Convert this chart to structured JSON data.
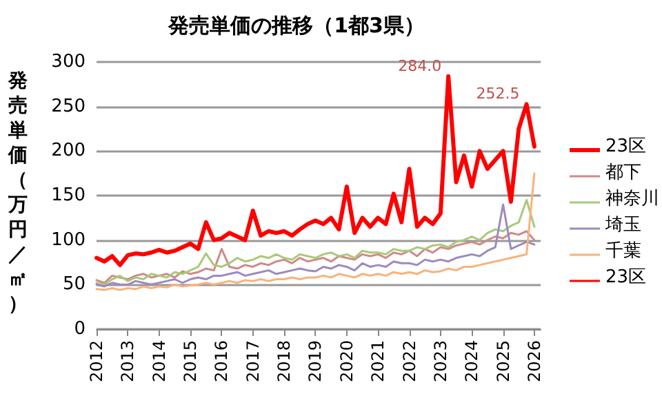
{
  "chart_data": {
    "type": "line",
    "title": "発売単価の推移（1都3県）",
    "ylabel": "発売単価（万円／㎡）",
    "x": [
      2012,
      2012.25,
      2012.5,
      2012.75,
      2013,
      2013.25,
      2013.5,
      2013.75,
      2014,
      2014.25,
      2014.5,
      2014.75,
      2015,
      2015.25,
      2015.5,
      2015.75,
      2016,
      2016.25,
      2016.5,
      2016.75,
      2017,
      2017.25,
      2017.5,
      2017.75,
      2018,
      2018.25,
      2018.5,
      2018.75,
      2019,
      2019.25,
      2019.5,
      2019.75,
      2020,
      2020.25,
      2020.5,
      2020.75,
      2021,
      2021.25,
      2021.5,
      2021.75,
      2022,
      2022.25,
      2022.5,
      2022.75,
      2023,
      2023.25,
      2023.5,
      2023.75,
      2024,
      2024.25,
      2024.5,
      2024.75,
      2025,
      2025.25,
      2025.5,
      2025.75,
      2026
    ],
    "series": [
      {
        "name": "23区",
        "color": "#ff0000",
        "values": [
          80,
          76,
          82,
          72,
          83,
          85,
          84,
          86,
          89,
          86,
          88,
          92,
          96,
          90,
          120,
          100,
          102,
          108,
          104,
          100,
          133,
          105,
          110,
          108,
          110,
          105,
          112,
          118,
          122,
          118,
          125,
          112,
          160,
          108,
          125,
          115,
          125,
          118,
          152,
          120,
          180,
          115,
          125,
          118,
          130,
          284,
          165,
          195,
          160,
          200,
          180,
          190,
          200,
          143,
          225,
          252.5,
          205
        ]
      },
      {
        "name": "都下",
        "color": "#d08a88",
        "values": [
          55,
          52,
          60,
          58,
          56,
          60,
          62,
          58,
          60,
          62,
          58,
          65,
          62,
          64,
          68,
          66,
          90,
          70,
          68,
          72,
          70,
          74,
          72,
          76,
          78,
          74,
          80,
          76,
          78,
          80,
          76,
          82,
          80,
          78,
          84,
          82,
          84,
          80,
          86,
          84,
          88,
          82,
          90,
          86,
          92,
          90,
          94,
          96,
          98,
          95,
          100,
          104,
          102,
          108,
          106,
          110,
          100
        ]
      },
      {
        "name": "神奈川",
        "color": "#a9c97a",
        "values": [
          52,
          50,
          56,
          60,
          54,
          58,
          56,
          62,
          60,
          58,
          64,
          62,
          66,
          70,
          85,
          72,
          70,
          74,
          80,
          76,
          78,
          82,
          80,
          84,
          80,
          78,
          84,
          82,
          80,
          84,
          86,
          82,
          84,
          80,
          88,
          86,
          86,
          84,
          90,
          88,
          88,
          92,
          90,
          94,
          95,
          92,
          98,
          100,
          104,
          100,
          108,
          112,
          110,
          116,
          120,
          145,
          115
        ]
      },
      {
        "name": "埼玉",
        "color": "#9c8ac0",
        "values": [
          50,
          48,
          52,
          50,
          50,
          54,
          52,
          50,
          52,
          54,
          56,
          52,
          56,
          58,
          56,
          60,
          60,
          62,
          64,
          60,
          62,
          64,
          66,
          62,
          64,
          66,
          68,
          66,
          65,
          70,
          68,
          72,
          70,
          66,
          74,
          70,
          72,
          70,
          76,
          74,
          74,
          72,
          78,
          76,
          78,
          76,
          80,
          82,
          84,
          82,
          88,
          92,
          140,
          90,
          94,
          98,
          95
        ]
      },
      {
        "name": "千葉",
        "color": "#f9b27a",
        "values": [
          45,
          44,
          46,
          44,
          46,
          45,
          48,
          46,
          48,
          47,
          50,
          48,
          49,
          50,
          52,
          50,
          52,
          54,
          52,
          55,
          54,
          56,
          54,
          56,
          56,
          58,
          56,
          58,
          58,
          60,
          58,
          62,
          60,
          58,
          62,
          60,
          62,
          60,
          64,
          62,
          64,
          62,
          66,
          64,
          65,
          68,
          66,
          70,
          70,
          72,
          74,
          76,
          78,
          80,
          82,
          84,
          175
        ]
      },
      {
        "name": "23区",
        "color": "#ff0000",
        "values": [
          null,
          null,
          null,
          null,
          null,
          null,
          null,
          null,
          null,
          null,
          null,
          null,
          null,
          null,
          null,
          null,
          null,
          null,
          null,
          null,
          null,
          null,
          null,
          null,
          null,
          null,
          null,
          null,
          null,
          null,
          null,
          null,
          null,
          null,
          null,
          null,
          null,
          null,
          null,
          null,
          null,
          null,
          null,
          null,
          null,
          null,
          null,
          null,
          null,
          null,
          null,
          null,
          null,
          null,
          null,
          null,
          null
        ]
      }
    ],
    "annotations": [
      {
        "text": "284.0",
        "x": 2023.25,
        "y": 284
      },
      {
        "text": "252.5",
        "x": 2025.75,
        "y": 252.5
      }
    ],
    "xlim": [
      2012,
      2026.2
    ],
    "xticks": [
      2012,
      2013,
      2014,
      2015,
      2016,
      2017,
      2018,
      2019,
      2020,
      2021,
      2022,
      2023,
      2024,
      2025,
      2026
    ],
    "ylim": [
      0,
      300
    ],
    "yticks": [
      0,
      50,
      100,
      150,
      200,
      250,
      300
    ],
    "grid": "y",
    "legend": "right",
    "marker": "none",
    "line_style": "solid"
  }
}
